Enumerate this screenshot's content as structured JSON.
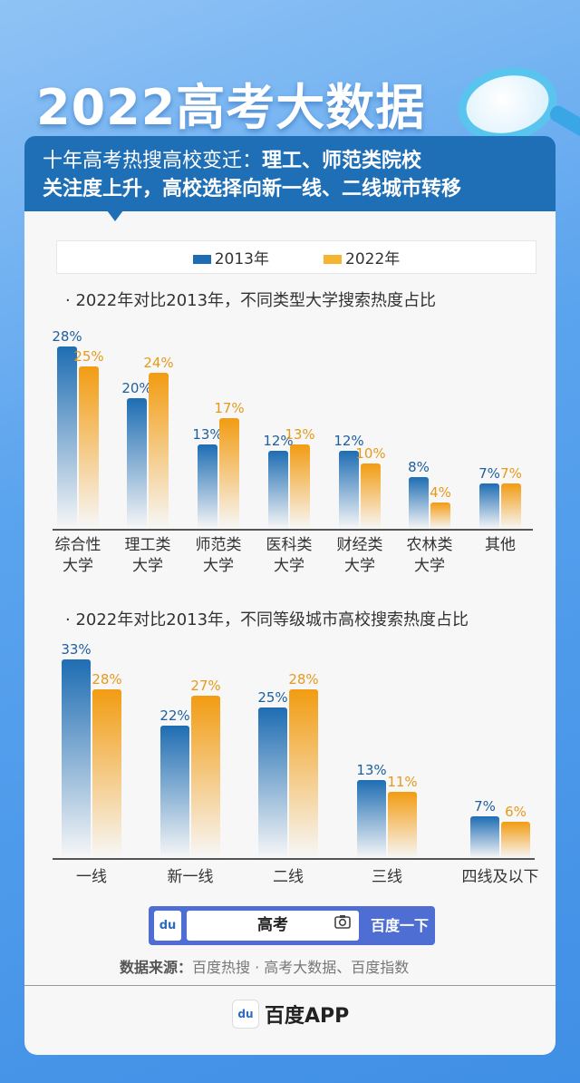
{
  "title": "2022高考大数据",
  "header": {
    "line1_normal": "十年高考热搜高校变迁：",
    "line1_bold": "理工、师范类院校",
    "line2": "关注度上升，高校选择向新一线、二线城市转移"
  },
  "colors": {
    "series_2013": "#1e6db3",
    "series_2022": "#f29c12",
    "header_bg": "#1f6fb6",
    "search_bg": "#4e6ed4"
  },
  "legend": [
    {
      "label": "2013年",
      "color": "#1e6db3"
    },
    {
      "label": "2022年",
      "color": "#f29c12"
    }
  ],
  "chart_data": [
    {
      "type": "bar",
      "title": "· 2022年对比2013年，不同类型大学搜索热度占比",
      "categories": [
        "综合性\n大学",
        "理工类\n大学",
        "师范类\n大学",
        "医科类\n大学",
        "财经类\n大学",
        "农林类\n大学",
        "其他"
      ],
      "series": [
        {
          "name": "2013年",
          "values": [
            28,
            20,
            13,
            12,
            12,
            8,
            7
          ]
        },
        {
          "name": "2022年",
          "values": [
            25,
            24,
            17,
            13,
            10,
            4,
            7
          ]
        }
      ],
      "unit": "%",
      "grid": false,
      "legend": "top"
    },
    {
      "type": "bar",
      "title": "· 2022年对比2013年，不同等级城市高校搜索热度占比",
      "categories": [
        "一线",
        "新一线",
        "二线",
        "三线",
        "四线及以下"
      ],
      "series": [
        {
          "name": "2013年",
          "values": [
            33,
            22,
            25,
            13,
            7
          ]
        },
        {
          "name": "2022年",
          "values": [
            28,
            27,
            28,
            11,
            6
          ]
        }
      ],
      "unit": "%",
      "grid": false,
      "legend": "top"
    }
  ],
  "search": {
    "query": "高考",
    "button": "百度一下",
    "logo_text": "du",
    "camera_icon": "camera-icon"
  },
  "source": {
    "label": "数据来源：",
    "text": "百度热搜 · 高考大数据、百度指数"
  },
  "footer": {
    "app": "百度APP",
    "logo_text": "du"
  }
}
